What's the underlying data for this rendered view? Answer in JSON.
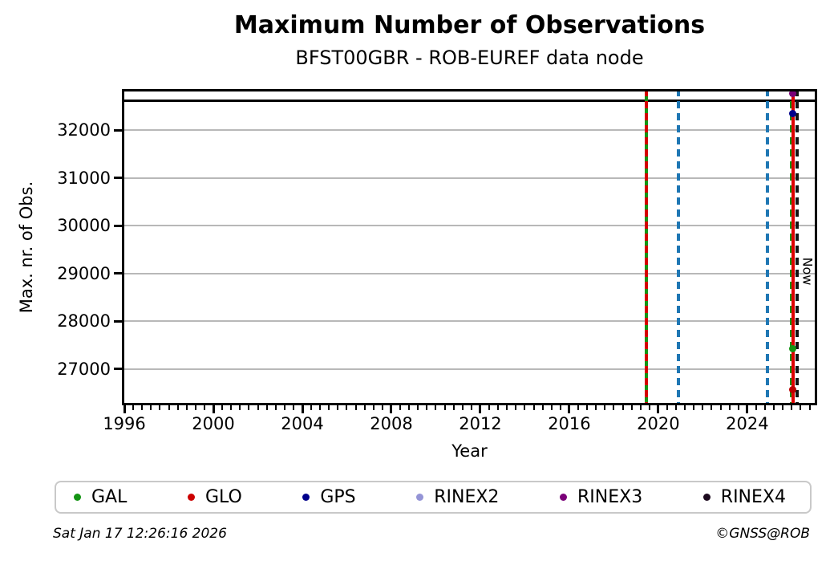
{
  "footer": {
    "timestamp": "Sat Jan 17 12:26:16 2026",
    "credit": "©GNSS@ROB"
  },
  "chart_data": {
    "type": "line",
    "title": "Maximum Number of Observations",
    "subtitle": "BFST00GBR - ROB-EUREF data node",
    "xlabel": "Year",
    "ylabel": "Max. nr. of Obs.",
    "xlim": [
      1995.89,
      2027.14
    ],
    "ylim": [
      26240,
      32860
    ],
    "x_major_ticks": [
      1996,
      2000,
      2004,
      2008,
      2012,
      2016,
      2020,
      2024
    ],
    "x_minor_step": 0.4,
    "y_ticks": [
      27000,
      28000,
      29000,
      30000,
      31000,
      32000
    ],
    "grid": "horizontal-only",
    "grid_color": "#b8b8b8",
    "horizontal_line": {
      "value": 32620,
      "color": "#000000",
      "style": "solid"
    },
    "vertical_lines": [
      {
        "year": 2019.45,
        "color": "#149414",
        "style": "solid",
        "name": "green-solid-event-line"
      },
      {
        "year": 2019.45,
        "color": "#d40000",
        "style": "dashed",
        "name": "red-dashed-event-line"
      },
      {
        "year": 2020.9,
        "color": "#1f77b4",
        "style": "dashed",
        "name": "blue-dashed-event-line-1"
      },
      {
        "year": 2024.9,
        "color": "#1f77b4",
        "style": "dashed",
        "name": "blue-dashed-event-line-2"
      },
      {
        "year": 2025.98,
        "color": "#149414",
        "style": "dashed",
        "name": "green-dashed-event-line"
      },
      {
        "year": 2026.05,
        "color": "#dd0000",
        "style": "solid",
        "name": "now-line",
        "label": "Now"
      },
      {
        "year": 2026.24,
        "color": "#141414",
        "style": "dashed",
        "name": "black-dashed-event-line"
      }
    ],
    "points": [
      {
        "series": "RINEX3",
        "x": 2026.05,
        "y": 32760,
        "color": "#7a0078"
      },
      {
        "series": "GPS",
        "x": 2026.05,
        "y": 32340,
        "color": "#00008b"
      },
      {
        "series": "GAL",
        "x": 2026.05,
        "y": 27420,
        "color": "#149414"
      },
      {
        "series": "GLO",
        "x": 2026.05,
        "y": 26560,
        "color": "#bb0000"
      }
    ],
    "legend": [
      {
        "label": "GAL",
        "color": "#149414"
      },
      {
        "label": "GLO",
        "color": "#cc0000"
      },
      {
        "label": "GPS",
        "color": "#00008b"
      },
      {
        "label": "RINEX2",
        "color": "#9494d6"
      },
      {
        "label": "RINEX3",
        "color": "#7a0078"
      },
      {
        "label": "RINEX4",
        "color": "#1c0a1e"
      }
    ],
    "legend_position": "bottom"
  }
}
